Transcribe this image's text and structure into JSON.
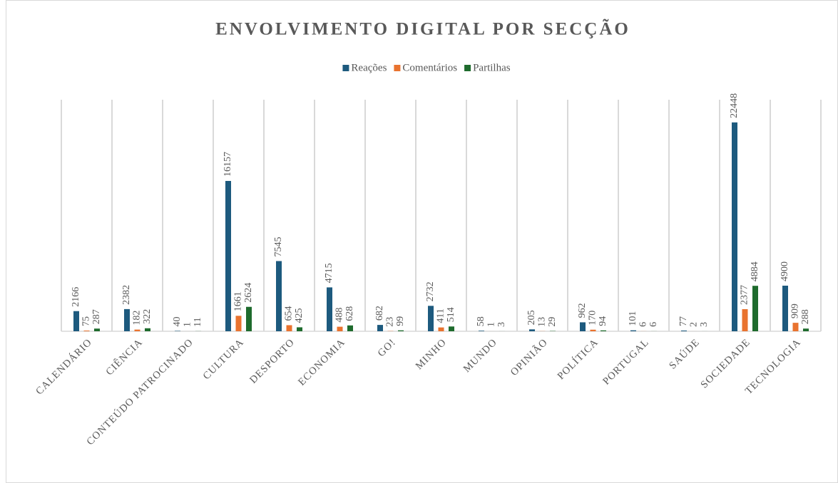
{
  "chart_data": {
    "type": "bar",
    "title": "ENVOLVIMENTO  DIGITAL  POR SECÇÃO",
    "categories": [
      "CALENDÁRIO",
      "CIÊNCIA",
      "CONTEÚDO PATROCINADO",
      "CULTURA",
      "DESPORTO",
      "ECONOMIA",
      "GO!",
      "MINHO",
      "MUNDO",
      "OPINIÃO",
      "POLÍTICA",
      "PORTUGAL",
      "SAÚDE",
      "SOCIEDADE",
      "TECNOLOGIA"
    ],
    "series": [
      {
        "name": "Reações",
        "color": "#1d5a7e",
        "values": [
          2166,
          2382,
          40,
          16157,
          7545,
          4715,
          682,
          2732,
          58,
          205,
          962,
          101,
          77,
          22448,
          4900
        ]
      },
      {
        "name": "Comentários",
        "color": "#e9732f",
        "values": [
          75,
          182,
          1,
          1661,
          654,
          488,
          23,
          411,
          1,
          13,
          170,
          6,
          2,
          2377,
          909
        ]
      },
      {
        "name": "Partilhas",
        "color": "#1e6b2d",
        "values": [
          287,
          322,
          11,
          2624,
          425,
          628,
          99,
          514,
          3,
          29,
          94,
          6,
          3,
          4884,
          288
        ]
      }
    ],
    "ylim": [
      0,
      25000
    ]
  }
}
